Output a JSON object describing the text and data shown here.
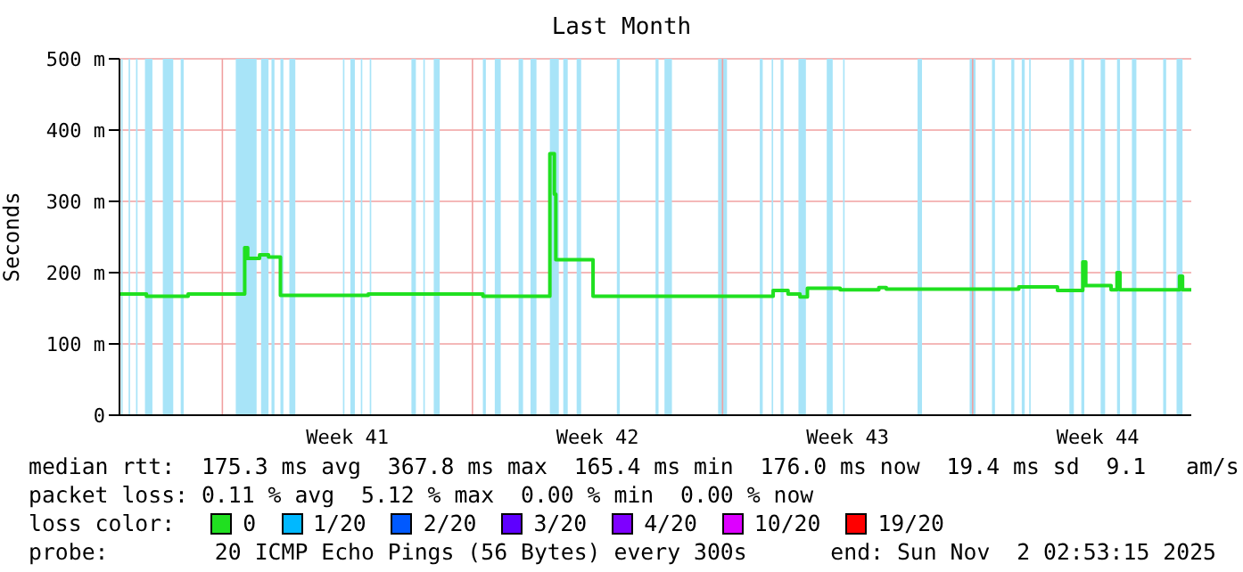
{
  "chart_data": {
    "type": "step",
    "title": "Last Month",
    "ylabel": "Seconds",
    "xlim": [
      "2025-10-03T02:53",
      "2025-11-02T02:53"
    ],
    "xticks": [
      {
        "value": "2025-10-06T00:00",
        "label": null
      },
      {
        "value": "2025-10-09T12:00",
        "label": "Week 41"
      },
      {
        "value": "2025-10-13T00:00",
        "label": null
      },
      {
        "value": "2025-10-16T12:00",
        "label": "Week 42"
      },
      {
        "value": "2025-10-20T00:00",
        "label": null
      },
      {
        "value": "2025-10-23T12:00",
        "label": "Week 43"
      },
      {
        "value": "2025-10-27T00:00",
        "label": null
      },
      {
        "value": "2025-10-30T12:00",
        "label": "Week 44"
      }
    ],
    "ylim": [
      0,
      500
    ],
    "yticks": [
      {
        "value": 0,
        "label": "0"
      },
      {
        "value": 100,
        "label": "100 m"
      },
      {
        "value": 200,
        "label": "200 m"
      },
      {
        "value": 300,
        "label": "300 m"
      },
      {
        "value": 400,
        "label": "400 m"
      },
      {
        "value": 500,
        "label": "500 m"
      }
    ],
    "grid": true,
    "marker": "none",
    "line_style": "solid",
    "legend": "bottom",
    "legend_title": "loss color:",
    "series": [
      {
        "name": "0",
        "color": "#20e020",
        "x": [
          "2025-10-03T03:00",
          "2025-10-03T21:00",
          "2025-10-05T01:00",
          "2025-10-06T15:00",
          "2025-10-06T17:00",
          "2025-10-07T01:00",
          "2025-10-07T07:00",
          "2025-10-07T15:00",
          "2025-10-10T02:00",
          "2025-10-13T07:00",
          "2025-10-15T04:00",
          "2025-10-15T07:00",
          "2025-10-15T08:00",
          "2025-10-16T09:00",
          "2025-10-21T10:00",
          "2025-10-21T20:00",
          "2025-10-22T04:00",
          "2025-10-22T09:00",
          "2025-10-23T07:00",
          "2025-10-24T09:00",
          "2025-10-24T14:00",
          "2025-10-28T07:00",
          "2025-10-29T09:00",
          "2025-10-30T02:00",
          "2025-10-30T04:00",
          "2025-10-30T21:00",
          "2025-10-31T01:00",
          "2025-10-31T03:00",
          "2025-11-01T19:00",
          "2025-11-01T21:00",
          "2025-11-02T02:53"
        ],
        "values": [
          170,
          167,
          170,
          235,
          220,
          225,
          222,
          168,
          170,
          167,
          367,
          310,
          218,
          167,
          175,
          170,
          166,
          178,
          176,
          179,
          177,
          180,
          175,
          215,
          182,
          176,
          200,
          176,
          195,
          176,
          176
        ]
      },
      {
        "name": "1/20",
        "color": "#00b8ff"
      },
      {
        "name": "2/20",
        "color": "#0059ff"
      },
      {
        "name": "3/20",
        "color": "#5e00ff"
      },
      {
        "name": "4/20",
        "color": "#7e00ff"
      },
      {
        "name": "10/20",
        "color": "#dd00ff"
      },
      {
        "name": "19/20",
        "color": "#ff0000"
      }
    ],
    "bands": [
      {
        "axis": "x",
        "from": "2025-10-03T04:00",
        "to": "2025-10-03T05:00",
        "color": "#a8e4f8"
      },
      {
        "axis": "x",
        "from": "2025-10-03T09:00",
        "to": "2025-10-03T10:00",
        "color": "#a8e4f8"
      },
      {
        "axis": "x",
        "from": "2025-10-03T14:00",
        "to": "2025-10-03T15:00",
        "color": "#a8e4f8"
      },
      {
        "axis": "x",
        "from": "2025-10-03T20:00",
        "to": "2025-10-04T01:00",
        "color": "#a8e4f8"
      },
      {
        "axis": "x",
        "from": "2025-10-04T08:00",
        "to": "2025-10-04T15:00",
        "color": "#a8e4f8"
      },
      {
        "axis": "x",
        "from": "2025-10-04T20:00",
        "to": "2025-10-04T22:00",
        "color": "#a8e4f8"
      },
      {
        "axis": "x",
        "from": "2025-10-06T09:00",
        "to": "2025-10-06T23:00",
        "color": "#a8e4f8"
      },
      {
        "axis": "x",
        "from": "2025-10-07T02:00",
        "to": "2025-10-07T07:00",
        "color": "#a8e4f8"
      },
      {
        "axis": "x",
        "from": "2025-10-07T09:00",
        "to": "2025-10-07T11:00",
        "color": "#a8e4f8"
      },
      {
        "axis": "x",
        "from": "2025-10-07T15:00",
        "to": "2025-10-07T17:00",
        "color": "#a8e4f8"
      },
      {
        "axis": "x",
        "from": "2025-10-07T21:00",
        "to": "2025-10-08T01:00",
        "color": "#a8e4f8"
      },
      {
        "axis": "x",
        "from": "2025-10-09T09:00",
        "to": "2025-10-09T10:00",
        "color": "#a8e4f8"
      },
      {
        "axis": "x",
        "from": "2025-10-09T14:00",
        "to": "2025-10-09T17:00",
        "color": "#a8e4f8"
      },
      {
        "axis": "x",
        "from": "2025-10-09T21:00",
        "to": "2025-10-09T22:00",
        "color": "#a8e4f8"
      },
      {
        "axis": "x",
        "from": "2025-10-10T03:00",
        "to": "2025-10-10T04:00",
        "color": "#a8e4f8"
      },
      {
        "axis": "x",
        "from": "2025-10-11T07:00",
        "to": "2025-10-11T10:00",
        "color": "#a8e4f8"
      },
      {
        "axis": "x",
        "from": "2025-10-11T15:00",
        "to": "2025-10-11T16:00",
        "color": "#a8e4f8"
      },
      {
        "axis": "x",
        "from": "2025-10-11T22:00",
        "to": "2025-10-12T02:00",
        "color": "#a8e4f8"
      },
      {
        "axis": "x",
        "from": "2025-10-13T07:00",
        "to": "2025-10-13T09:00",
        "color": "#a8e4f8"
      },
      {
        "axis": "x",
        "from": "2025-10-13T15:00",
        "to": "2025-10-13T19:00",
        "color": "#a8e4f8"
      },
      {
        "axis": "x",
        "from": "2025-10-14T07:00",
        "to": "2025-10-14T10:00",
        "color": "#a8e4f8"
      },
      {
        "axis": "x",
        "from": "2025-10-14T15:00",
        "to": "2025-10-14T19:00",
        "color": "#a8e4f8"
      },
      {
        "axis": "x",
        "from": "2025-10-15T04:00",
        "to": "2025-10-15T10:00",
        "color": "#a8e4f8"
      },
      {
        "axis": "x",
        "from": "2025-10-15T13:00",
        "to": "2025-10-15T16:00",
        "color": "#a8e4f8"
      },
      {
        "axis": "x",
        "from": "2025-10-15T22:00",
        "to": "2025-10-16T01:00",
        "color": "#a8e4f8"
      },
      {
        "axis": "x",
        "from": "2025-10-17T01:00",
        "to": "2025-10-17T03:00",
        "color": "#a8e4f8"
      },
      {
        "axis": "x",
        "from": "2025-10-18T03:00",
        "to": "2025-10-18T05:00",
        "color": "#a8e4f8"
      },
      {
        "axis": "x",
        "from": "2025-10-18T09:00",
        "to": "2025-10-18T14:00",
        "color": "#a8e4f8"
      },
      {
        "axis": "x",
        "from": "2025-10-19T21:00",
        "to": "2025-10-20T03:00",
        "color": "#a8e4f8"
      },
      {
        "axis": "x",
        "from": "2025-10-21T01:00",
        "to": "2025-10-21T03:00",
        "color": "#a8e4f8"
      },
      {
        "axis": "x",
        "from": "2025-10-21T09:00",
        "to": "2025-10-21T10:00",
        "color": "#a8e4f8"
      },
      {
        "axis": "x",
        "from": "2025-10-21T15:00",
        "to": "2025-10-21T17:00",
        "color": "#a8e4f8"
      },
      {
        "axis": "x",
        "from": "2025-10-22T03:00",
        "to": "2025-10-22T08:00",
        "color": "#a8e4f8"
      },
      {
        "axis": "x",
        "from": "2025-10-22T22:00",
        "to": "2025-10-23T02:00",
        "color": "#a8e4f8"
      },
      {
        "axis": "x",
        "from": "2025-10-23T09:00",
        "to": "2025-10-23T10:00",
        "color": "#a8e4f8"
      },
      {
        "axis": "x",
        "from": "2025-10-25T11:00",
        "to": "2025-10-25T14:00",
        "color": "#a8e4f8"
      },
      {
        "axis": "x",
        "from": "2025-10-26T22:00",
        "to": "2025-10-27T02:00",
        "color": "#a8e4f8"
      },
      {
        "axis": "x",
        "from": "2025-10-27T13:00",
        "to": "2025-10-27T15:00",
        "color": "#a8e4f8"
      },
      {
        "axis": "x",
        "from": "2025-10-28T02:00",
        "to": "2025-10-28T04:00",
        "color": "#a8e4f8"
      },
      {
        "axis": "x",
        "from": "2025-10-28T09:00",
        "to": "2025-10-28T11:00",
        "color": "#a8e4f8"
      },
      {
        "axis": "x",
        "from": "2025-10-28T14:00",
        "to": "2025-10-28T15:00",
        "color": "#a8e4f8"
      },
      {
        "axis": "x",
        "from": "2025-10-29T17:00",
        "to": "2025-10-29T20:00",
        "color": "#a8e4f8"
      },
      {
        "axis": "x",
        "from": "2025-10-30T01:00",
        "to": "2025-10-30T03:00",
        "color": "#a8e4f8"
      },
      {
        "axis": "x",
        "from": "2025-10-30T14:00",
        "to": "2025-10-30T17:00",
        "color": "#a8e4f8"
      },
      {
        "axis": "x",
        "from": "2025-10-31T01:00",
        "to": "2025-10-31T03:00",
        "color": "#a8e4f8"
      },
      {
        "axis": "x",
        "from": "2025-10-31T11:00",
        "to": "2025-10-31T14:00",
        "color": "#a8e4f8"
      },
      {
        "axis": "x",
        "from": "2025-11-01T08:00",
        "to": "2025-11-01T10:00",
        "color": "#a8e4f8"
      },
      {
        "axis": "x",
        "from": "2025-11-01T17:00",
        "to": "2025-11-01T21:00",
        "color": "#a8e4f8"
      }
    ],
    "annotations": [
      "median rtt:  175.3 ms avg  367.8 ms max  165.4 ms min  176.0 ms now  19.4 ms sd  9.1   am/s",
      "packet loss: 0.11 % avg  5.12 % max  0.00 % min  0.00 % now",
      "probe:        20 ICMP Echo Pings (56 Bytes) every 300s",
      "end: Sun Nov  2 02:53:15 2025"
    ]
  }
}
